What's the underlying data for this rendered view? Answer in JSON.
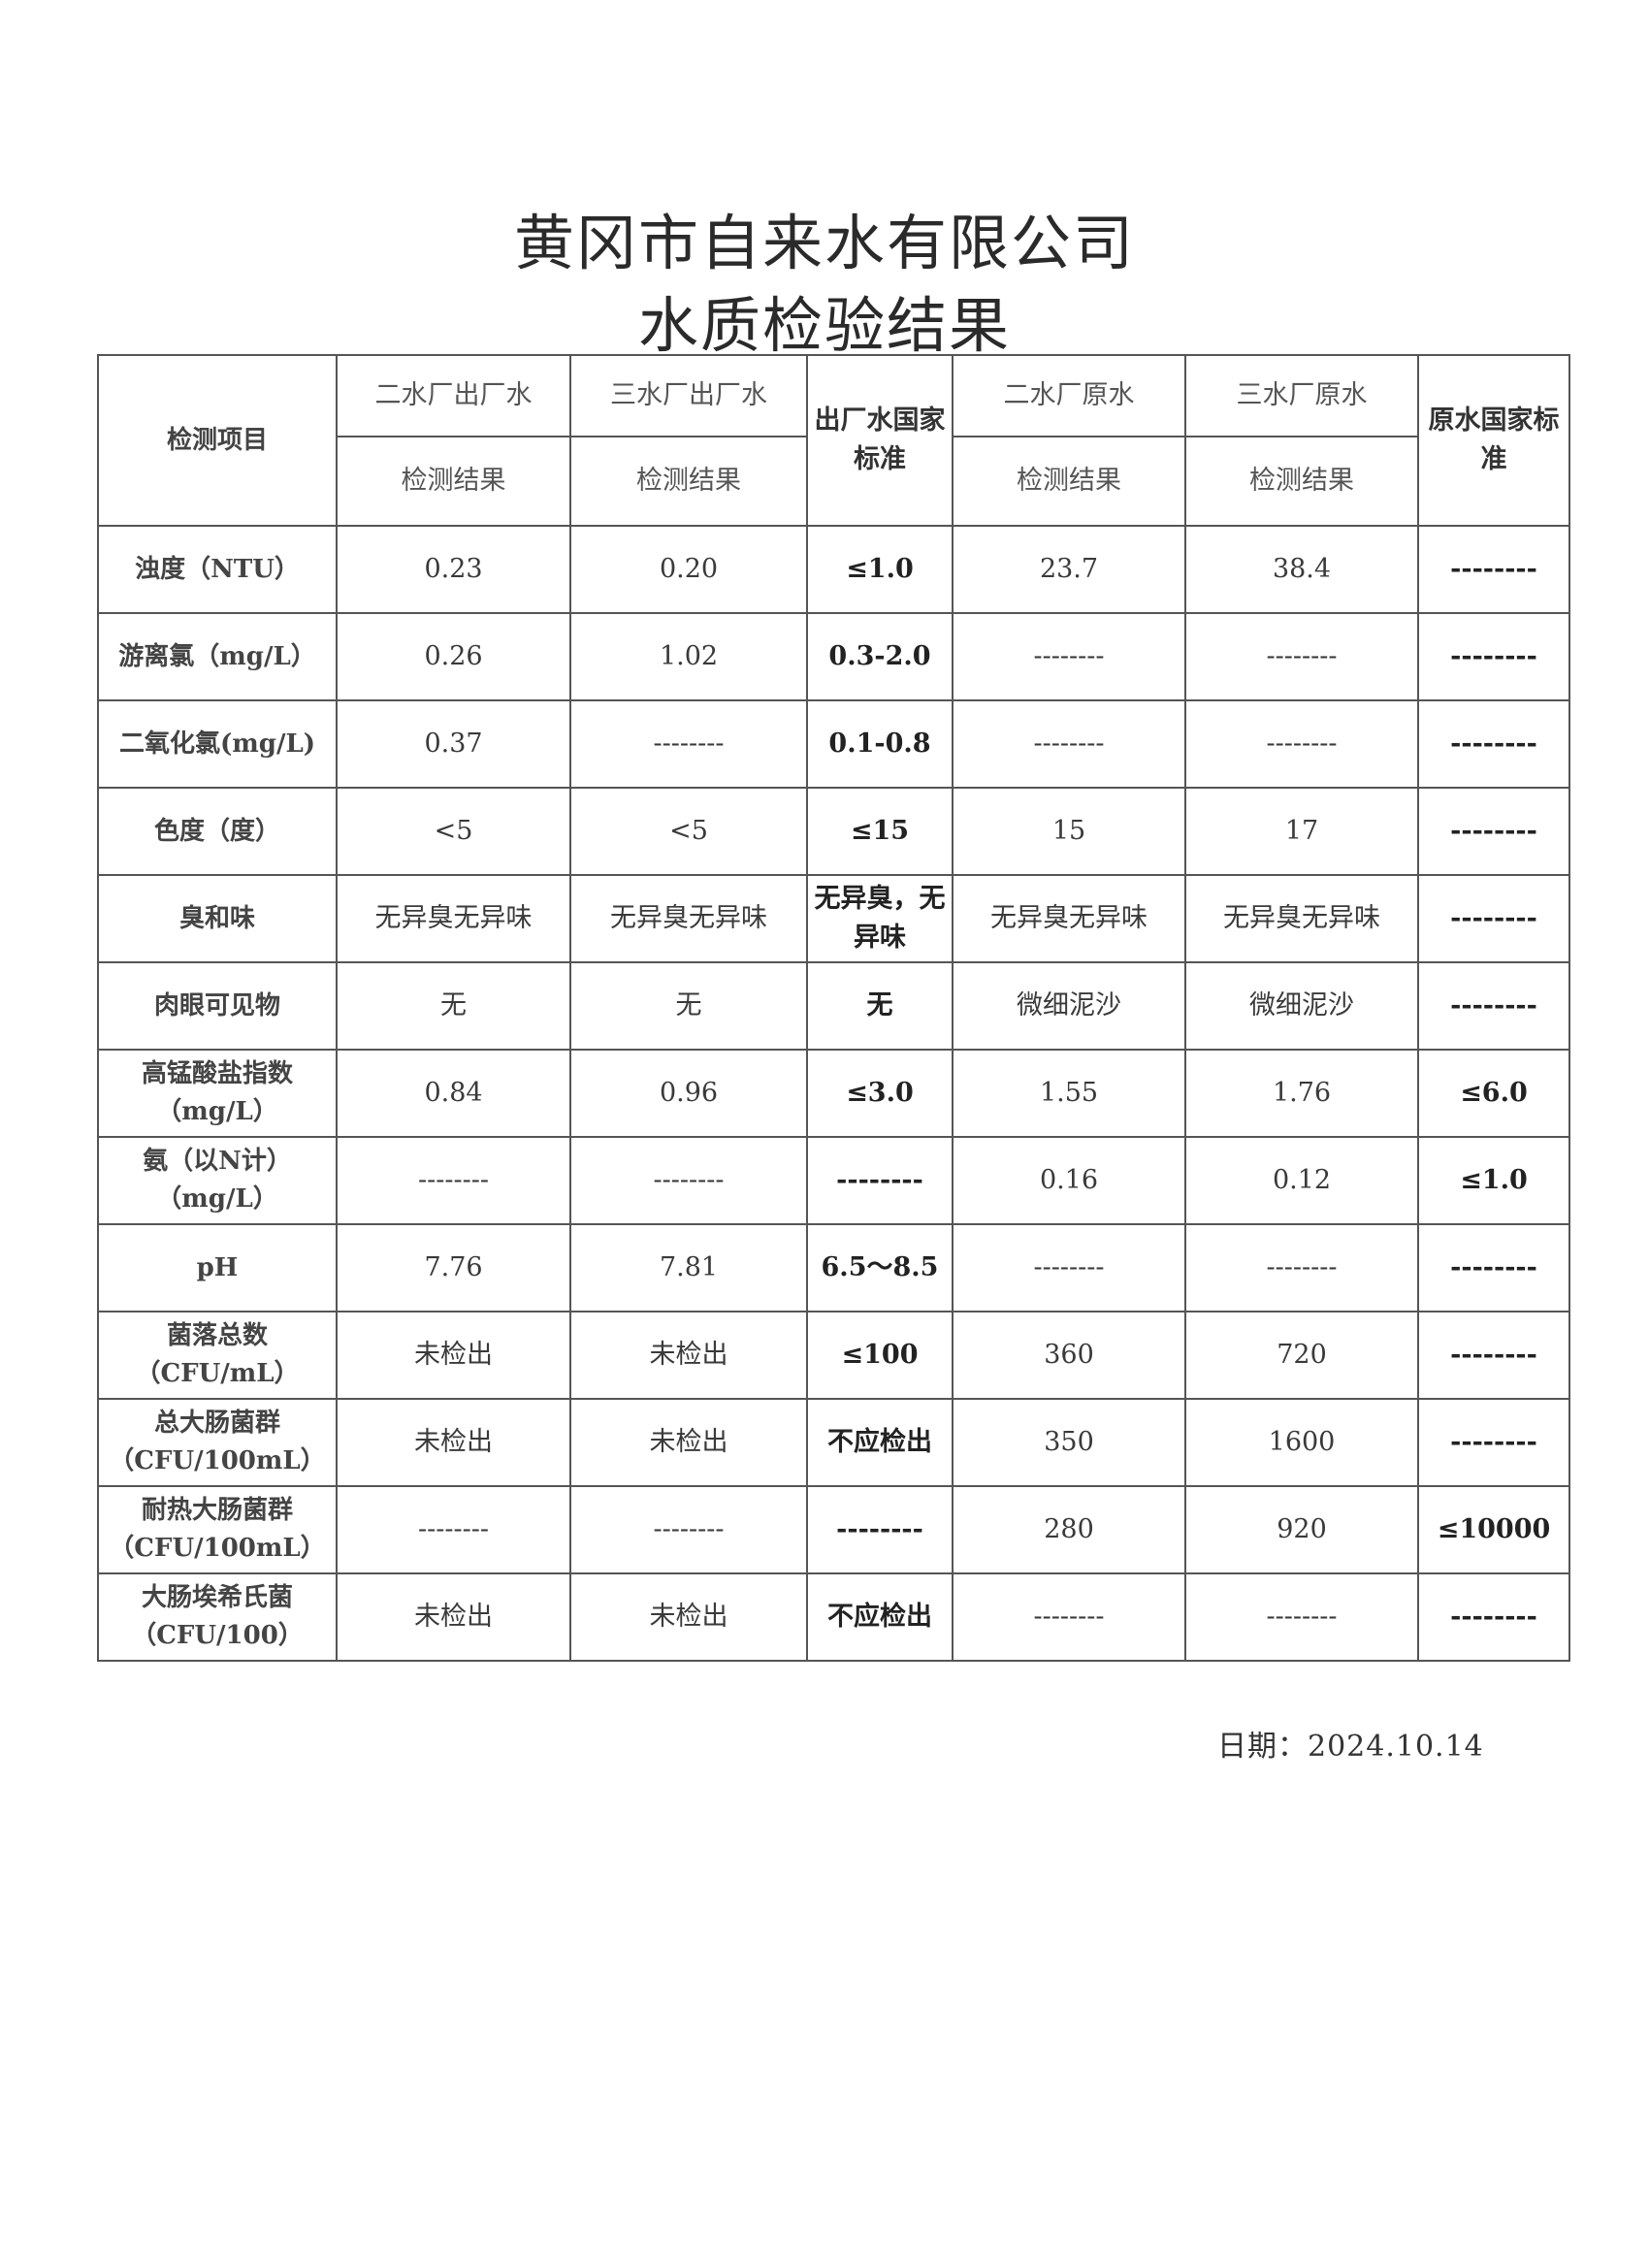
{
  "title": {
    "line1": "黄冈市自来水有限公司",
    "line2": "水质检验结果"
  },
  "table": {
    "header": {
      "item": "检测项目",
      "groups": [
        "二水厂出厂水",
        "三水厂出厂水",
        "出厂水国家标准",
        "二水厂原水",
        "三水厂原水",
        "原水国家标准"
      ],
      "sub": "检测结果"
    },
    "rows": [
      {
        "item": "浊度（NTU）",
        "values": [
          "0.23",
          "0.20",
          "≤1.0",
          "23.7",
          "38.4",
          "--------"
        ]
      },
      {
        "item": "游离氯（mg/L）",
        "values": [
          "0.26",
          "1.02",
          "0.3-2.0",
          "--------",
          "--------",
          "--------"
        ]
      },
      {
        "item": "二氧化氯(mg/L)",
        "values": [
          "0.37",
          "--------",
          "0.1-0.8",
          "--------",
          "--------",
          "--------"
        ]
      },
      {
        "item": "色度（度）",
        "values": [
          "<5",
          "<5",
          "≤15",
          "15",
          "17",
          "--------"
        ]
      },
      {
        "item": "臭和味",
        "values": [
          "无异臭无异味",
          "无异臭无异味",
          "无异臭，无异味",
          "无异臭无异味",
          "无异臭无异味",
          "--------"
        ]
      },
      {
        "item": "肉眼可见物",
        "values": [
          "无",
          "无",
          "无",
          "微细泥沙",
          "微细泥沙",
          "--------"
        ]
      },
      {
        "item": "高锰酸盐指数（mg/L）",
        "values": [
          "0.84",
          "0.96",
          "≤3.0",
          "1.55",
          "1.76",
          "≤6.0"
        ]
      },
      {
        "item": "氨（以N计）（mg/L）",
        "values": [
          "--------",
          "--------",
          "--------",
          "0.16",
          "0.12",
          "≤1.0"
        ]
      },
      {
        "item": "pH",
        "values": [
          "7.76",
          "7.81",
          "6.5～8.5",
          "--------",
          "--------",
          "--------"
        ]
      },
      {
        "item": "菌落总数（CFU/mL）",
        "values": [
          "未检出",
          "未检出",
          "≤100",
          "360",
          "720",
          "--------"
        ]
      },
      {
        "item": "总大肠菌群（CFU/100mL）",
        "values": [
          "未检出",
          "未检出",
          "不应检出",
          "350",
          "1600",
          "--------"
        ]
      },
      {
        "item": "耐热大肠菌群（CFU/100mL）",
        "values": [
          "--------",
          "--------",
          "--------",
          "280",
          "920",
          "≤10000"
        ]
      },
      {
        "item": "大肠埃希氏菌（CFU/100）",
        "values": [
          "未检出",
          "未检出",
          "不应检出",
          "--------",
          "--------",
          "--------"
        ]
      }
    ]
  },
  "date": "日期：2024.10.14"
}
